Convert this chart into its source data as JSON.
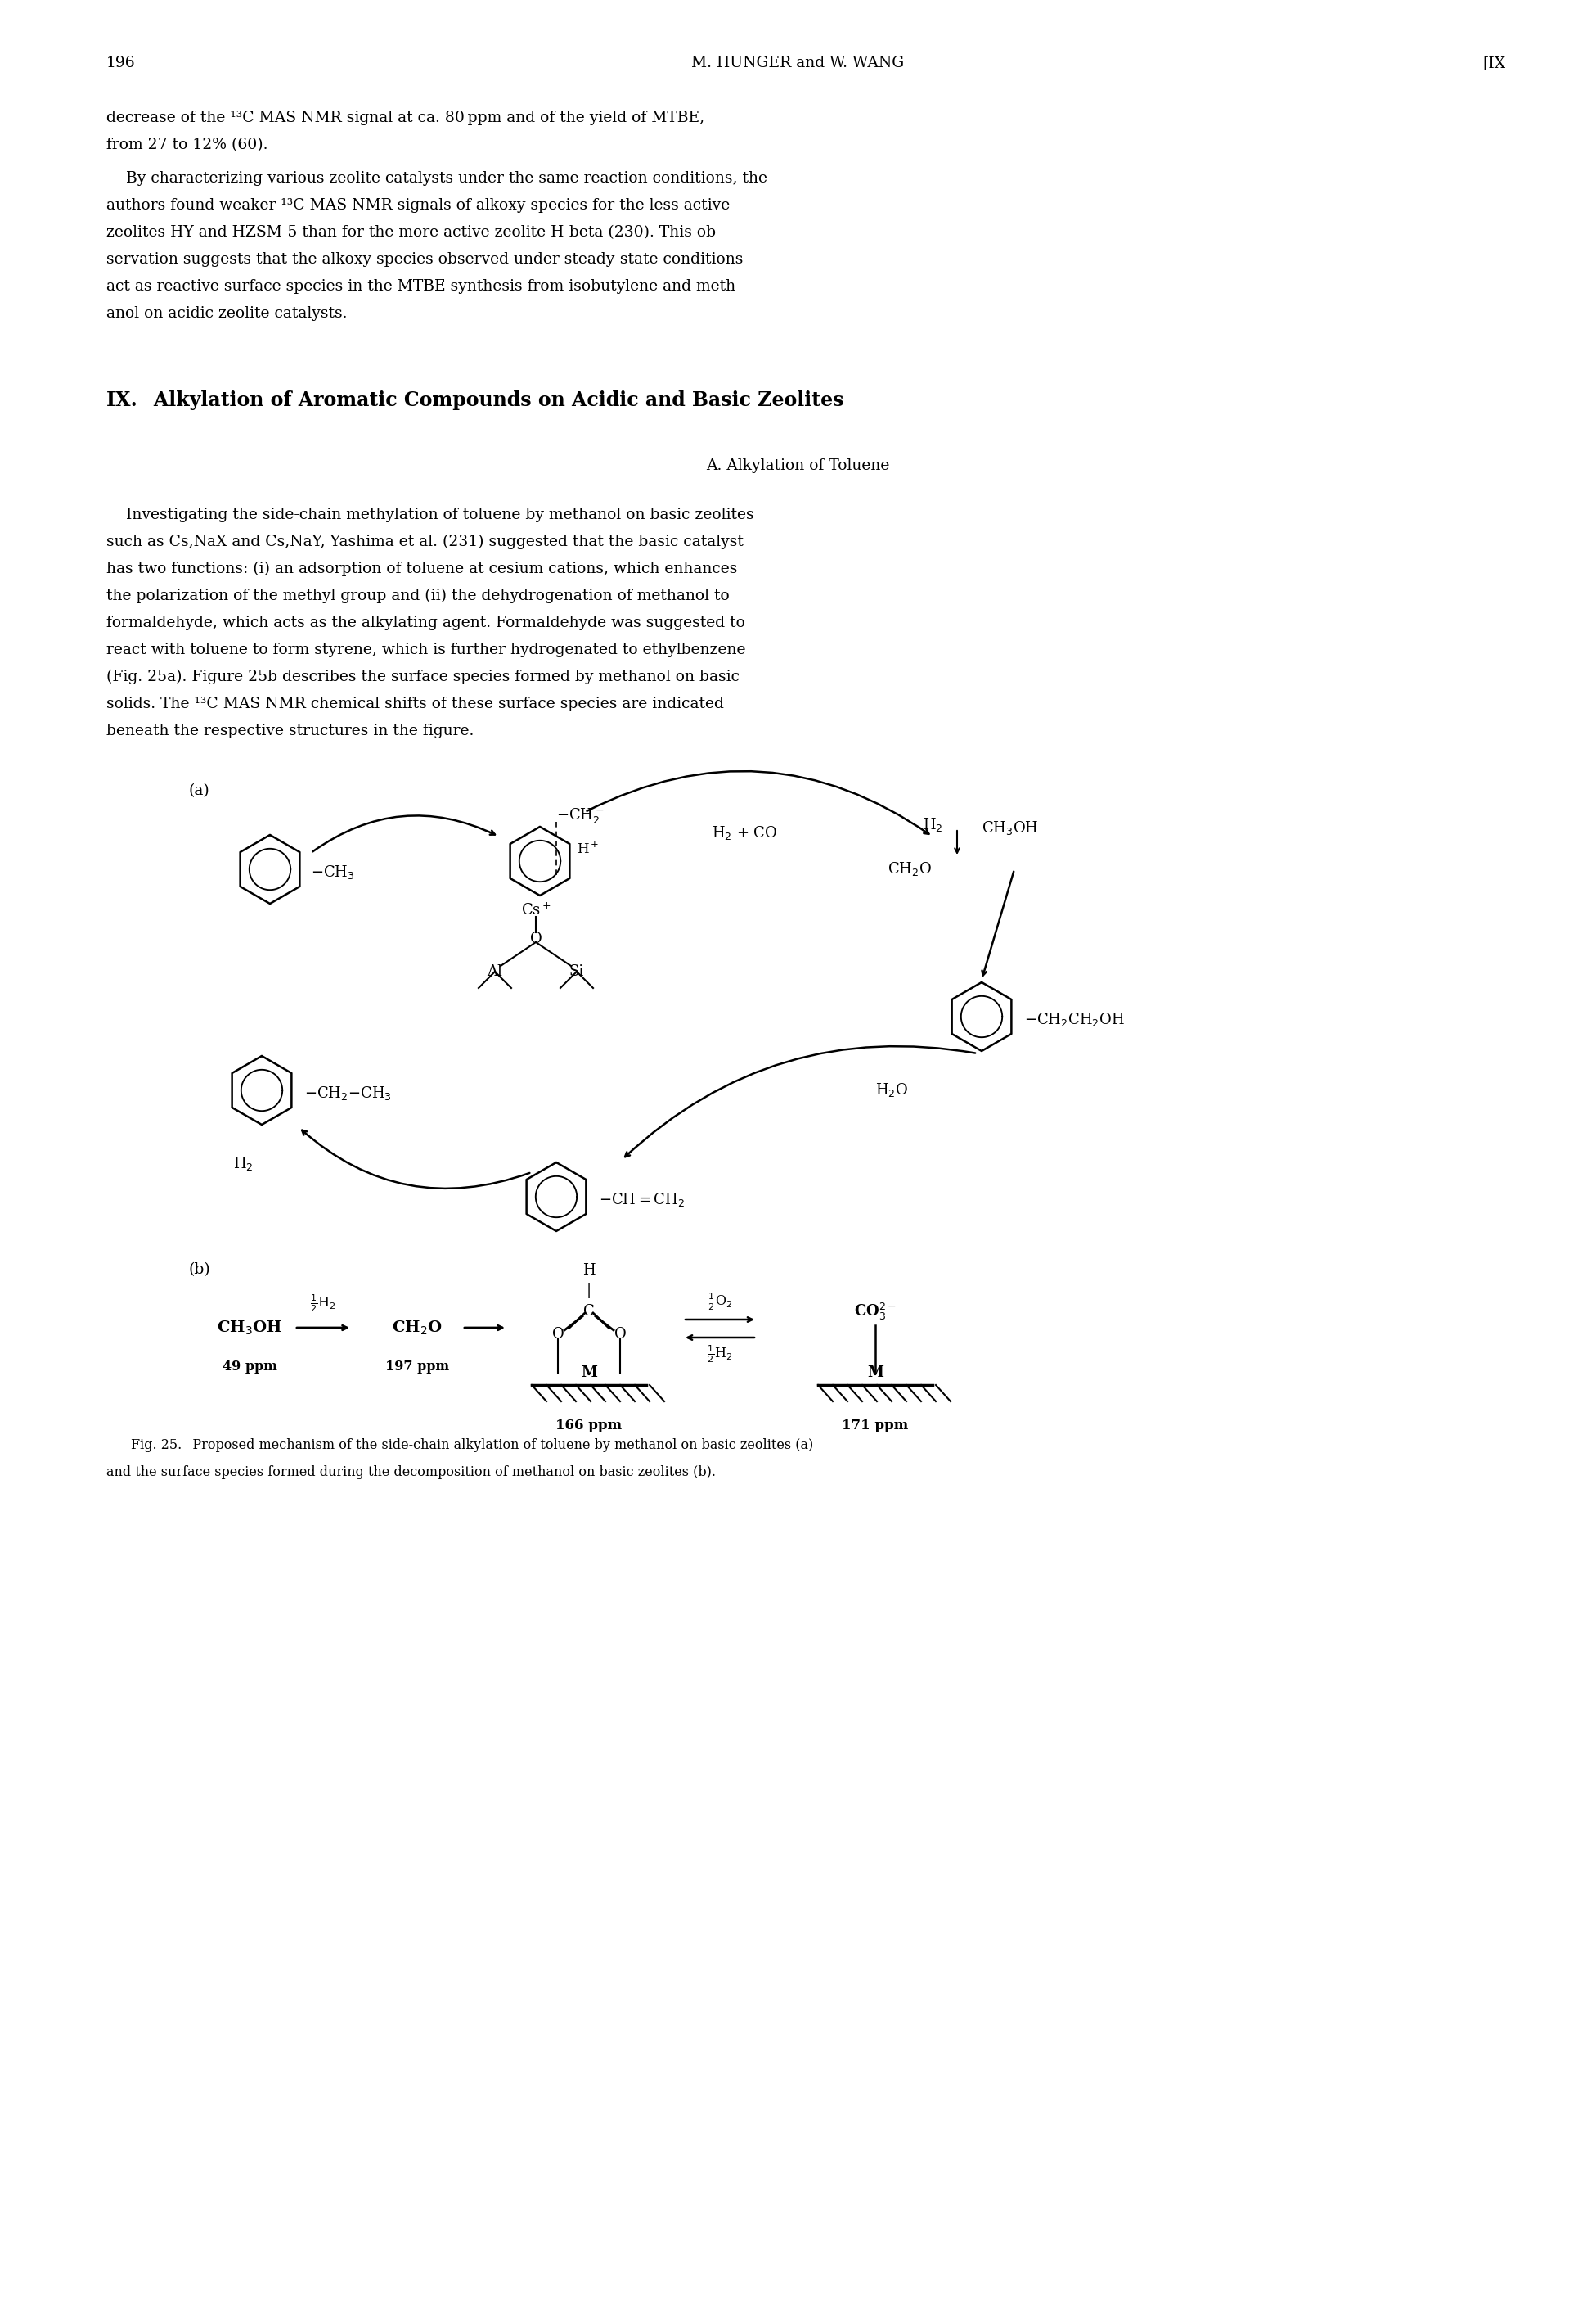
{
  "page_number": "196",
  "header_center": "M. HUNGER and W. WANG",
  "header_right": "[IX",
  "bg_color": "#ffffff",
  "para1_lines": [
    "decrease of the ¹³C MAS NMR signal at ca. 80 ppm and of the yield of MTBE,",
    "from 27 to 12% (60)."
  ],
  "para2_lines": [
    "    By characterizing various zeolite catalysts under the same reaction conditions, the",
    "authors found weaker ¹³C MAS NMR signals of alkoxy species for the less active",
    "zeolites HY and HZSM-5 than for the more active zeolite H-beta (230). This ob-",
    "servation suggests that the alkoxy species observed under steady-state conditions",
    "act as reactive surface species in the MTBE synthesis from isobutylene and meth-",
    "anol on acidic zeolite catalysts."
  ],
  "section_heading": "IX.  Alkylation of Aromatic Compounds on Acidic and Basic Zeolites",
  "subsection_heading": "A. Alkylation of Toluene",
  "para3_lines": [
    "    Investigating the side-chain methylation of toluene by methanol on basic zeolites",
    "such as Cs,NaX and Cs,NaY, Yashima et al. (231) suggested that the basic catalyst",
    "has two functions: (i) an adsorption of toluene at cesium cations, which enhances",
    "the polarization of the methyl group and (ii) the dehydrogenation of methanol to",
    "formaldehyde, which acts as the alkylating agent. Formaldehyde was suggested to",
    "react with toluene to form styrene, which is further hydrogenated to ethylbenzene",
    "(Fig. 25a). Figure 25b describes the surface species formed by methanol on basic",
    "solids. The ¹³C MAS NMR chemical shifts of these surface species are indicated",
    "beneath the respective structures in the figure."
  ],
  "fig_caption_line1": "Fig. 25.  Proposed mechanism of the side-chain alkylation of toluene by methanol on basic zeolites (a)",
  "fig_caption_line2": "and the surface species formed during the decomposition of methanol on basic zeolites (b)."
}
